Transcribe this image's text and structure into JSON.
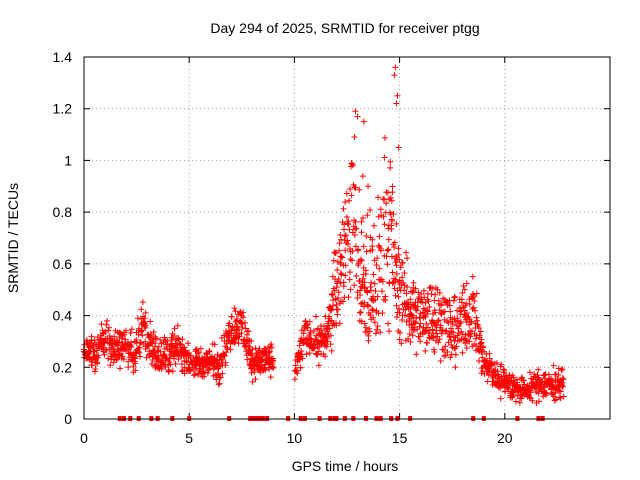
{
  "chart_data": {
    "type": "scatter",
    "title": "Day 294 of 2025, SRMTID for receiver ptgg",
    "xlabel": "GPS time / hours",
    "ylabel": "SRMTID / TECUs",
    "xlim": [
      0,
      25
    ],
    "ylim": [
      0,
      1.4
    ],
    "xticks": [
      "0",
      "5",
      "10",
      "15",
      "20"
    ],
    "yticks": [
      "0",
      "0.2",
      "0.4",
      "0.6",
      "0.8",
      "1",
      "1.2",
      "1.4"
    ],
    "grid": true,
    "marker": "+",
    "series_color": "#ff0000",
    "profile": {
      "x": [
        0.0,
        0.5,
        1.0,
        1.5,
        2.0,
        2.5,
        2.8,
        3.0,
        3.5,
        4.0,
        4.5,
        5.0,
        5.5,
        6.0,
        6.5,
        7.0,
        7.5,
        8.0,
        8.5,
        9.0,
        9.5,
        10.0,
        10.5,
        11.0,
        11.5,
        12.0,
        12.5,
        12.8,
        13.0,
        13.5,
        14.0,
        14.3,
        14.6,
        15.0,
        15.5,
        16.0,
        16.5,
        17.0,
        17.5,
        18.0,
        18.5,
        19.0,
        19.5,
        20.0,
        20.5,
        21.0,
        21.5,
        22.0,
        22.5,
        22.8
      ],
      "center": [
        0.27,
        0.25,
        0.3,
        0.27,
        0.28,
        0.26,
        0.4,
        0.3,
        0.24,
        0.25,
        0.28,
        0.22,
        0.21,
        0.22,
        0.22,
        0.36,
        0.36,
        0.22,
        0.23,
        0.22,
        null,
        0.17,
        0.32,
        0.3,
        0.3,
        0.52,
        0.72,
        0.8,
        0.6,
        0.45,
        0.55,
        0.75,
        0.7,
        0.48,
        0.44,
        0.38,
        0.4,
        0.38,
        0.34,
        0.38,
        0.42,
        0.22,
        0.17,
        0.14,
        0.12,
        0.11,
        0.13,
        0.14,
        0.13,
        0.14
      ],
      "spread": [
        0.04,
        0.05,
        0.06,
        0.05,
        0.05,
        0.06,
        0.06,
        0.06,
        0.06,
        0.05,
        0.05,
        0.04,
        0.04,
        0.04,
        0.05,
        0.06,
        0.06,
        0.04,
        0.04,
        0.04,
        0.0,
        0.04,
        0.05,
        0.05,
        0.06,
        0.12,
        0.18,
        0.22,
        0.25,
        0.2,
        0.22,
        0.25,
        0.22,
        0.12,
        0.1,
        0.1,
        0.1,
        0.1,
        0.09,
        0.1,
        0.1,
        0.05,
        0.04,
        0.04,
        0.04,
        0.03,
        0.04,
        0.04,
        0.04,
        0.04
      ]
    },
    "zero_marker_x": [
      1.7,
      1.9,
      2.2,
      2.6,
      3.2,
      3.5,
      4.2,
      5.0,
      6.9,
      7.9,
      8.0,
      8.1,
      8.2,
      8.3,
      8.4,
      8.5,
      8.7,
      9.7,
      10.3,
      10.5,
      11.2,
      11.7,
      11.9,
      12.0,
      12.4,
      12.8,
      13.4,
      13.9,
      14.1,
      14.6,
      14.9,
      15.5,
      18.5,
      19.0,
      20.6,
      21.6,
      21.8
    ]
  }
}
